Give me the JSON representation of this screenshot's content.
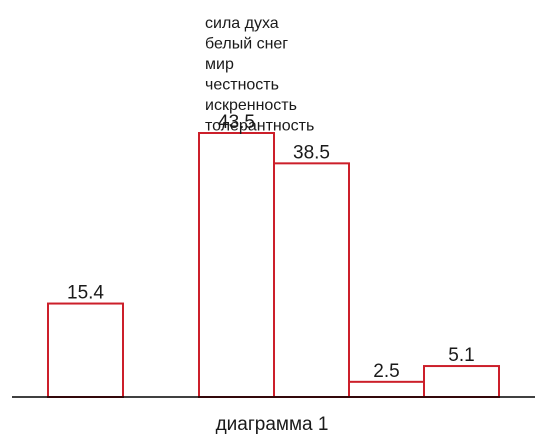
{
  "chart_data": {
    "type": "bar",
    "caption": "диаграмма 1",
    "legend": [
      "сила духа",
      "белый снег",
      "мир",
      "честность",
      "искренность",
      "толерантность"
    ],
    "categories": [
      "сила духа",
      "белый снег",
      "мир",
      "честность",
      "искренность",
      "толерантность"
    ],
    "values": [
      15.4,
      null,
      43.5,
      38.5,
      2.5,
      5.1
    ],
    "value_labels": [
      "15.4",
      "",
      "43.5",
      "38.5",
      "2.5",
      "5.1"
    ],
    "ylim": [
      0,
      43.5
    ],
    "grid": false,
    "legend_position": "top-center",
    "colors": {
      "bar_stroke": "#cc1f2a",
      "bar_fill": "#ffffff",
      "axis": "#000000",
      "text": "#1a1a1a"
    }
  }
}
